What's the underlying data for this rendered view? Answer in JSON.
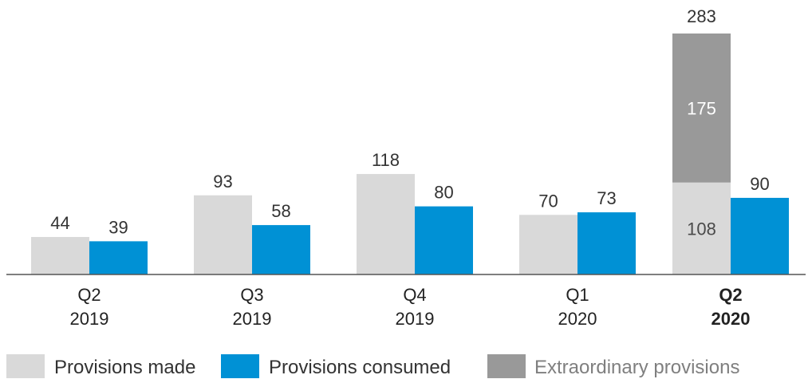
{
  "chart_data": {
    "type": "bar",
    "categories": [
      {
        "line1": "Q2",
        "line2": "2019",
        "highlight": false
      },
      {
        "line1": "Q3",
        "line2": "2019",
        "highlight": false
      },
      {
        "line1": "Q4",
        "line2": "2019",
        "highlight": false
      },
      {
        "line1": "Q1",
        "line2": "2020",
        "highlight": false
      },
      {
        "line1": "Q2",
        "line2": "2020",
        "highlight": true
      }
    ],
    "series": [
      {
        "name": "Provisions made",
        "color": "#d9d9d9",
        "values": [
          44,
          93,
          118,
          70,
          108
        ]
      },
      {
        "name": "Provisions consumed",
        "color": "#0091d5",
        "values": [
          39,
          58,
          80,
          73,
          90
        ]
      },
      {
        "name": "Extraordinary provisions",
        "color": "#999999",
        "values": [
          0,
          0,
          0,
          0,
          175
        ],
        "stacked_on": "Provisions made"
      }
    ],
    "totals": [
      null,
      null,
      null,
      null,
      283
    ],
    "legend_position": "bottom",
    "grid": false,
    "ylim": [
      0,
      290
    ],
    "title": "",
    "xlabel": "",
    "ylabel": ""
  }
}
